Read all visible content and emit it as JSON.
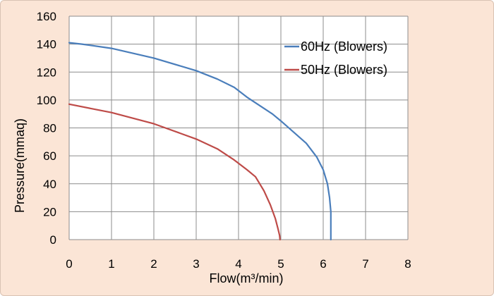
{
  "chart_data": {
    "type": "line",
    "title": "",
    "xlabel": "Flow(m³/min)",
    "ylabel": "Pressure(mmaq)",
    "xlim": [
      0,
      8
    ],
    "ylim": [
      0,
      160
    ],
    "xticks": [
      "0",
      "1",
      "2",
      "3",
      "4",
      "5",
      "6",
      "7",
      "8"
    ],
    "yticks": [
      "0",
      "20",
      "40",
      "60",
      "80",
      "100",
      "120",
      "140",
      "160"
    ],
    "grid": true,
    "legend_position": "top-right",
    "series": [
      {
        "name": "60Hz (Blowers)",
        "color": "#4a7ebb",
        "x": [
          0,
          0.3,
          1,
          2,
          3,
          3.5,
          3.9,
          4.2,
          4.5,
          4.8,
          5.0,
          5.3,
          5.6,
          5.85,
          6.0,
          6.1,
          6.15,
          6.18,
          6.18
        ],
        "y": [
          141,
          140,
          137,
          130,
          121,
          115,
          109,
          102,
          96,
          90,
          85,
          77,
          69,
          59,
          50,
          40,
          30,
          20,
          0
        ]
      },
      {
        "name": "50Hz (Blowers)",
        "color": "#be4b48",
        "x": [
          0,
          0.5,
          1,
          2,
          3,
          3.5,
          3.9,
          4.2,
          4.4,
          4.6,
          4.75,
          4.87,
          4.93,
          4.97,
          4.98
        ],
        "y": [
          97,
          94,
          91,
          83,
          72,
          65,
          57,
          50,
          45,
          35,
          25,
          15,
          8,
          3,
          0
        ]
      }
    ]
  }
}
